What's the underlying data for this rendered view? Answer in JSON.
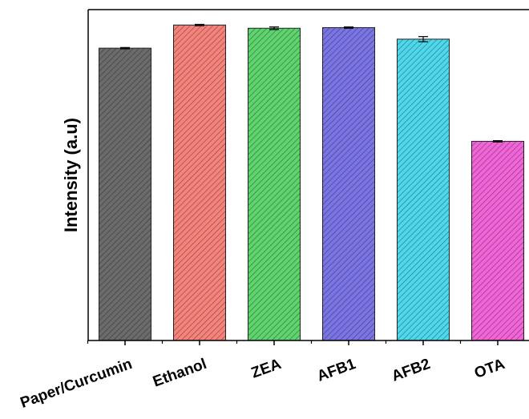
{
  "chart_data": {
    "type": "bar",
    "categories": [
      "Paper/Curcumin",
      "Ethanol",
      "ZEA",
      "AFB1",
      "AFB2",
      "OTA"
    ],
    "values": [
      91,
      98.2,
      97.2,
      97.4,
      93.8,
      62
    ],
    "errors": [
      0.2,
      0.2,
      0.4,
      0.2,
      0.8,
      0.2
    ],
    "colors": [
      "#6b6b6b",
      "#f5837b",
      "#5ed36e",
      "#7b74e5",
      "#4fd8ec",
      "#f165d8"
    ],
    "title": "",
    "xlabel": "",
    "ylabel": "Intensity (a.u)",
    "ylim": [
      0,
      103
    ],
    "grid": false,
    "legend": "none"
  }
}
